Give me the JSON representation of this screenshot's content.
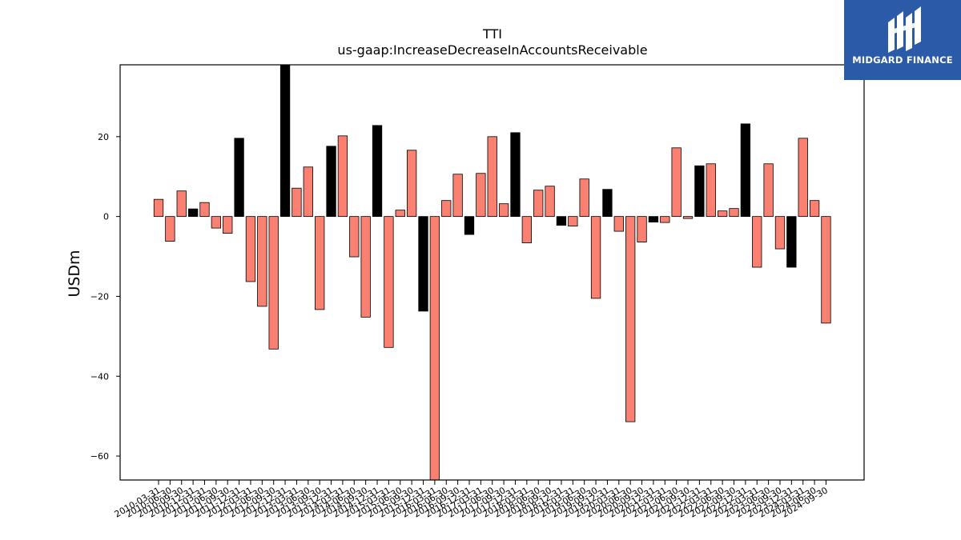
{
  "chart_data": {
    "type": "bar",
    "title": "TTI",
    "subtitle": "us-gaap:IncreaseDecreaseInAccountsReceivable",
    "ylabel": "USDm",
    "xlabel": "",
    "ylim": [
      -66,
      38
    ],
    "yticks": [
      -60,
      -40,
      -20,
      0,
      20
    ],
    "grid": false,
    "colors": {
      "q1_q3": "#fa8072",
      "q4": "#000000",
      "edge": "#000000"
    },
    "categories": [
      "2010-03-31",
      "2010-06-30",
      "2010-09-30",
      "2010-12-31",
      "2011-03-31",
      "2011-06-30",
      "2011-09-30",
      "2011-12-31",
      "2012-03-31",
      "2012-06-30",
      "2012-09-30",
      "2012-12-31",
      "2013-03-31",
      "2013-06-30",
      "2013-09-30",
      "2013-12-31",
      "2014-03-31",
      "2014-06-30",
      "2014-09-30",
      "2014-12-31",
      "2015-03-31",
      "2015-06-30",
      "2015-09-30",
      "2015-12-31",
      "2016-03-31",
      "2016-06-30",
      "2016-09-30",
      "2016-12-31",
      "2017-03-31",
      "2017-06-30",
      "2017-09-30",
      "2017-12-31",
      "2018-03-31",
      "2018-06-30",
      "2018-09-30",
      "2018-12-31",
      "2019-03-31",
      "2019-06-30",
      "2019-09-30",
      "2019-12-31",
      "2020-03-31",
      "2020-06-30",
      "2020-09-30",
      "2020-12-31",
      "2021-03-31",
      "2021-06-30",
      "2021-09-30",
      "2021-12-31",
      "2022-03-31",
      "2022-06-30",
      "2022-09-30",
      "2022-12-31",
      "2023-03-31",
      "2023-06-30",
      "2023-09-30",
      "2023-12-31",
      "2024-03-31",
      "2024-06-30",
      "2024-09-30"
    ],
    "values": [
      4.3,
      -6.2,
      6.4,
      1.9,
      3.5,
      -2.9,
      -4.2,
      19.6,
      -16.3,
      -22.5,
      -33.2,
      38.0,
      7.1,
      12.4,
      -23.3,
      17.6,
      20.2,
      -10.1,
      -25.2,
      22.8,
      -32.8,
      1.6,
      16.6,
      -23.7,
      -66.0,
      4.0,
      10.6,
      -4.5,
      10.8,
      20.0,
      3.2,
      21.0,
      -6.6,
      6.6,
      7.6,
      -2.2,
      -2.4,
      9.4,
      -20.5,
      6.8,
      -3.7,
      -51.4,
      -6.4,
      -1.4,
      -1.5,
      17.2,
      -0.5,
      12.7,
      13.2,
      1.4,
      2.0,
      23.2,
      -12.7,
      13.2,
      -8.1,
      -12.7,
      19.6,
      4.0,
      -26.7
    ]
  },
  "logo": {
    "text": "MIDGARD FINANCE",
    "background": "#2b5ba8"
  }
}
